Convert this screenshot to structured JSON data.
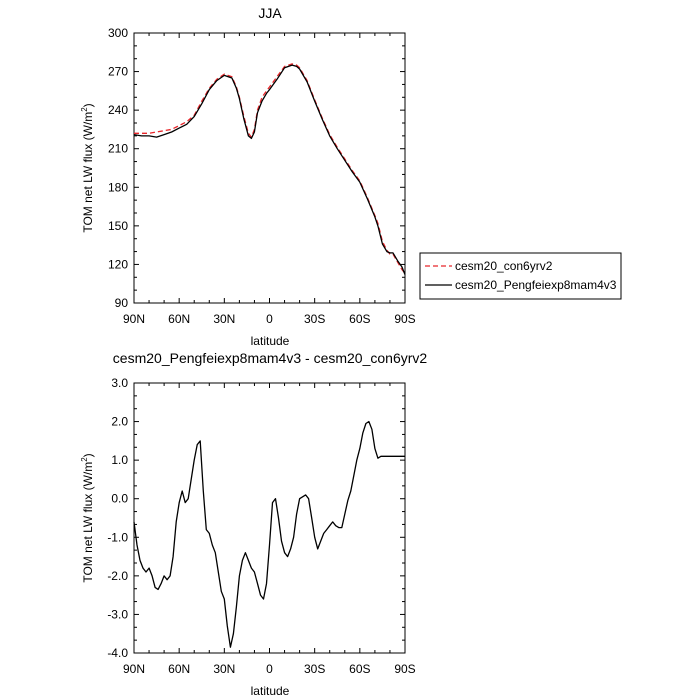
{
  "chart_data": [
    {
      "type": "line",
      "title": "JJA",
      "xlabel": "latitude",
      "ylabel": "TOM net LW flux (W/m²)",
      "ylabel_main": "TOM net LW flux (W/m",
      "ylabel_sup": "2",
      "ylabel_tail": ")",
      "xlim": [
        90,
        -90
      ],
      "ylim": [
        90,
        300
      ],
      "x_ticks": [
        90,
        60,
        30,
        0,
        -30,
        -60,
        -90
      ],
      "x_tick_labels": [
        "90N",
        "60N",
        "30N",
        "0",
        "30S",
        "60S",
        "90S"
      ],
      "y_ticks": [
        90,
        120,
        150,
        180,
        210,
        240,
        270,
        300
      ],
      "y_tick_labels": [
        "90",
        "120",
        "150",
        "180",
        "210",
        "240",
        "270",
        "300"
      ],
      "legend": {
        "placement": "right"
      },
      "series": [
        {
          "name": "cesm20_con6yrv2",
          "color": "#e8262a",
          "dash": "dashed",
          "x": [
            90,
            85,
            80,
            75,
            70,
            65,
            60,
            55,
            50,
            45,
            40,
            35,
            30,
            25,
            22,
            20,
            17,
            14,
            12,
            10,
            8,
            5,
            2,
            0,
            -5,
            -10,
            -15,
            -18,
            -20,
            -25,
            -30,
            -35,
            -40,
            -45,
            -50,
            -55,
            -60,
            -65,
            -70,
            -72,
            -75,
            -78,
            -80,
            -82,
            -85,
            -88,
            -90
          ],
          "y": [
            222,
            222,
            222,
            223,
            224,
            225,
            228,
            231,
            236,
            247,
            257,
            264,
            268,
            266,
            258,
            250,
            235,
            222,
            219,
            225,
            240,
            250,
            255,
            258,
            266,
            274,
            276,
            275,
            273,
            263,
            248,
            234,
            221,
            211,
            202,
            193,
            185,
            172,
            158,
            152,
            138,
            131,
            128,
            128,
            122,
            116,
            113
          ]
        },
        {
          "name": "cesm20_Pengfeiexp8mam4v3",
          "color": "#000000",
          "dash": "solid",
          "x": [
            90,
            85,
            80,
            75,
            70,
            65,
            60,
            55,
            50,
            45,
            40,
            35,
            30,
            25,
            22,
            20,
            17,
            14,
            12,
            10,
            8,
            5,
            2,
            0,
            -5,
            -10,
            -15,
            -18,
            -20,
            -25,
            -30,
            -35,
            -40,
            -45,
            -50,
            -55,
            -60,
            -65,
            -70,
            -72,
            -75,
            -78,
            -80,
            -82,
            -85,
            -88,
            -90
          ],
          "y": [
            221,
            220,
            220,
            219,
            221,
            223,
            226,
            229,
            235,
            245,
            256,
            263,
            267,
            265,
            257,
            249,
            233,
            220,
            218,
            223,
            238,
            247,
            253,
            256,
            264,
            273,
            275,
            274,
            272,
            262,
            247,
            233,
            220,
            210,
            201,
            192,
            184,
            171,
            157,
            150,
            136,
            130,
            129,
            129,
            123,
            118,
            112
          ]
        }
      ]
    },
    {
      "type": "line",
      "title": "cesm20_Pengfeiexp8mam4v3 - cesm20_con6yrv2",
      "xlabel": "latitude",
      "ylabel": "TOM net LW flux (W/m²)",
      "ylabel_main": "TOM net LW flux (W/m",
      "ylabel_sup": "2",
      "ylabel_tail": ")",
      "xlim": [
        90,
        -90
      ],
      "ylim": [
        -4.0,
        3.0
      ],
      "x_ticks": [
        90,
        60,
        30,
        0,
        -30,
        -60,
        -90
      ],
      "x_tick_labels": [
        "90N",
        "60N",
        "30N",
        "0",
        "30S",
        "60S",
        "90S"
      ],
      "y_ticks": [
        -4.0,
        -3.0,
        -2.0,
        -1.0,
        0.0,
        1.0,
        2.0,
        3.0
      ],
      "y_tick_labels": [
        "-4.0",
        "-3.0",
        "-2.0",
        "-1.0",
        "0.0",
        "1.0",
        "2.0",
        "3.0"
      ],
      "series": [
        {
          "color": "#000000",
          "dash": "solid",
          "x": [
            90,
            88,
            86,
            84,
            82,
            80,
            78,
            76,
            74,
            72,
            70,
            68,
            66,
            64,
            62,
            60,
            58,
            56,
            54,
            52,
            50,
            48,
            46,
            44,
            42,
            40,
            38,
            36,
            34,
            32,
            30,
            28,
            26,
            24,
            22,
            20,
            18,
            16,
            14,
            12,
            10,
            8,
            6,
            4,
            2,
            0,
            -2,
            -4,
            -6,
            -8,
            -10,
            -12,
            -14,
            -16,
            -18,
            -20,
            -22,
            -24,
            -26,
            -28,
            -30,
            -32,
            -34,
            -36,
            -38,
            -40,
            -42,
            -44,
            -46,
            -48,
            -50,
            -52,
            -54,
            -56,
            -58,
            -60,
            -62,
            -64,
            -66,
            -68,
            -70,
            -72,
            -74,
            -76,
            -78,
            -80,
            -82,
            -84,
            -86,
            -88,
            -90
          ],
          "y": [
            -0.6,
            -1.2,
            -1.6,
            -1.8,
            -1.9,
            -1.8,
            -2.0,
            -2.3,
            -2.35,
            -2.2,
            -2.0,
            -2.1,
            -2.0,
            -1.5,
            -0.6,
            -0.1,
            0.2,
            -0.1,
            0.0,
            0.5,
            1.0,
            1.4,
            1.5,
            0.2,
            -0.8,
            -0.9,
            -1.2,
            -1.4,
            -1.9,
            -2.4,
            -2.6,
            -3.3,
            -3.85,
            -3.5,
            -2.8,
            -2.0,
            -1.6,
            -1.4,
            -1.6,
            -1.8,
            -1.9,
            -2.2,
            -2.5,
            -2.6,
            -2.2,
            -1.2,
            -0.1,
            0.0,
            -0.5,
            -1.1,
            -1.4,
            -1.5,
            -1.3,
            -1.0,
            -0.4,
            0.0,
            0.05,
            0.1,
            0.0,
            -0.5,
            -1.0,
            -1.3,
            -1.1,
            -0.9,
            -0.8,
            -0.7,
            -0.6,
            -0.7,
            -0.75,
            -0.75,
            -0.4,
            -0.05,
            0.2,
            0.6,
            1.0,
            1.3,
            1.7,
            1.95,
            2.0,
            1.8,
            1.3,
            1.05,
            1.1,
            1.1,
            1.1,
            1.1,
            1.1,
            1.1,
            1.1,
            1.1,
            1.1
          ]
        }
      ]
    }
  ]
}
